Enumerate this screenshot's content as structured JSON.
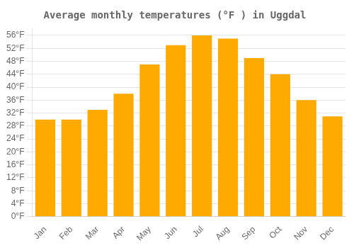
{
  "chart_data": {
    "type": "bar",
    "title": "Average monthly temperatures (°F ) in Uggdal",
    "categories": [
      "Jan",
      "Feb",
      "Mar",
      "Apr",
      "May",
      "Jun",
      "Jul",
      "Aug",
      "Sep",
      "Oct",
      "Nov",
      "Dec"
    ],
    "values": [
      30,
      30,
      33,
      38,
      47,
      53,
      56,
      55,
      49,
      44,
      36,
      31
    ],
    "color": "#FFAA00",
    "ylim": [
      0,
      58
    ],
    "yticks": [
      {
        "value": 0,
        "label": "0°F"
      },
      {
        "value": 4,
        "label": "4°F"
      },
      {
        "value": 8,
        "label": "8°F"
      },
      {
        "value": 12,
        "label": "12°F"
      },
      {
        "value": 16,
        "label": "16°F"
      },
      {
        "value": 20,
        "label": "20°F"
      },
      {
        "value": 24,
        "label": "24°F"
      },
      {
        "value": 28,
        "label": "28°F"
      },
      {
        "value": 32,
        "label": "32°F"
      },
      {
        "value": 36,
        "label": "36°F"
      },
      {
        "value": 40,
        "label": "40°F"
      },
      {
        "value": 44,
        "label": "44°F"
      },
      {
        "value": 48,
        "label": "48°F"
      },
      {
        "value": 52,
        "label": "52°F"
      },
      {
        "value": 56,
        "label": "56°F"
      }
    ],
    "grid": true
  }
}
